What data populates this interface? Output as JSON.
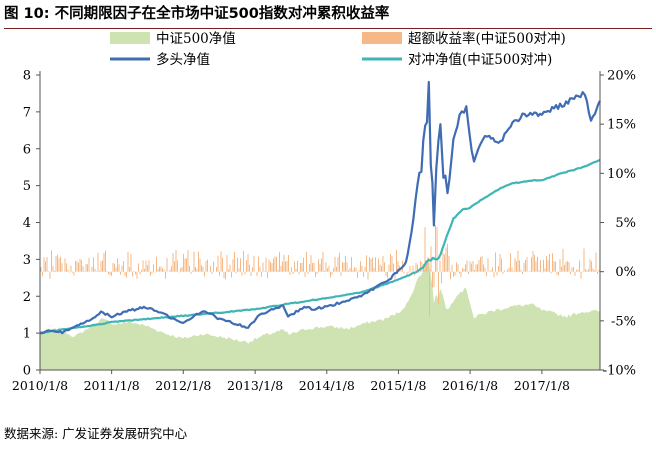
{
  "title": "图 10:  不同期限因子在全市场中证500指数对冲累积收益率",
  "source": "数据来源:  广发证券发展研究中心",
  "colors": {
    "index_area": "#cfe2b1",
    "excess_bar": "#f5b887",
    "long_line": "#3f6cb3",
    "hedge_line": "#3fb5b7",
    "title_rule": "#7a1e1e"
  },
  "chart_data": {
    "type": "line",
    "legend_placement": "top",
    "grid": false,
    "x_ticks": [
      "2010/1/8",
      "2011/1/8",
      "2012/1/8",
      "2013/1/8",
      "2014/1/8",
      "2015/1/8",
      "2016/1/8",
      "2017/1/8"
    ],
    "x_range": [
      "2010/01/08",
      "2017/10/31"
    ],
    "y_left": {
      "range": [
        0,
        8
      ],
      "ticks": [
        "0",
        "1",
        "2",
        "3",
        "4",
        "5",
        "6",
        "7",
        "8"
      ]
    },
    "y_right": {
      "range": [
        -10,
        20
      ],
      "unit": "%",
      "ticks": [
        "-10%",
        "-5%",
        "0%",
        "5%",
        "10%",
        "15%",
        "20%"
      ]
    },
    "series": [
      {
        "name": "中证500净值",
        "kind": "area",
        "axis": "left",
        "color": "#cfe2b1",
        "points": [
          [
            "2010/01/08",
            1.0
          ],
          [
            "2010/04/15",
            1.12
          ],
          [
            "2010/07/05",
            0.9
          ],
          [
            "2010/10/20",
            1.28
          ],
          [
            "2010/11/20",
            1.38
          ],
          [
            "2011/01/20",
            1.25
          ],
          [
            "2011/04/15",
            1.3
          ],
          [
            "2011/07/01",
            1.2
          ],
          [
            "2011/10/15",
            0.98
          ],
          [
            "2012/01/08",
            0.85
          ],
          [
            "2012/04/15",
            0.98
          ],
          [
            "2012/07/15",
            0.9
          ],
          [
            "2012/10/15",
            0.8
          ],
          [
            "2012/12/05",
            0.76
          ],
          [
            "2013/03/01",
            0.95
          ],
          [
            "2013/05/30",
            1.08
          ],
          [
            "2013/07/01",
            0.96
          ],
          [
            "2013/10/01",
            1.12
          ],
          [
            "2014/01/08",
            1.18
          ],
          [
            "2014/05/01",
            1.12
          ],
          [
            "2014/08/01",
            1.28
          ],
          [
            "2014/11/01",
            1.38
          ],
          [
            "2015/01/08",
            1.55
          ],
          [
            "2015/03/01",
            1.85
          ],
          [
            "2015/04/15",
            2.45
          ],
          [
            "2015/06/12",
            3.05
          ],
          [
            "2015/07/08",
            1.9
          ],
          [
            "2015/08/20",
            2.15
          ],
          [
            "2015/09/15",
            1.6
          ],
          [
            "2015/11/01",
            2.05
          ],
          [
            "2015/12/20",
            2.22
          ],
          [
            "2016/01/28",
            1.4
          ],
          [
            "2016/03/01",
            1.5
          ],
          [
            "2016/05/01",
            1.6
          ],
          [
            "2016/08/01",
            1.72
          ],
          [
            "2016/11/15",
            1.78
          ],
          [
            "2017/01/08",
            1.62
          ],
          [
            "2017/05/15",
            1.45
          ],
          [
            "2017/08/01",
            1.58
          ],
          [
            "2017/10/31",
            1.6
          ]
        ]
      },
      {
        "name": "超额收益率(中证500对冲)",
        "kind": "bar",
        "axis": "right",
        "color": "#f5b887",
        "baseline": 0,
        "range_normal": [
          -0.8,
          2.5
        ],
        "range_volatile": [
          -5,
          5
        ],
        "volatile_period": [
          "2015/05/01",
          "2015/10/01"
        ]
      },
      {
        "name": "多头净值",
        "kind": "line",
        "axis": "left",
        "color": "#3f6cb3",
        "points": [
          [
            "2010/01/08",
            1.0
          ],
          [
            "2010/03/15",
            1.08
          ],
          [
            "2010/05/01",
            1.02
          ],
          [
            "2010/07/05",
            1.15
          ],
          [
            "2010/10/15",
            1.45
          ],
          [
            "2010/11/15",
            1.58
          ],
          [
            "2011/01/08",
            1.45
          ],
          [
            "2011/04/15",
            1.62
          ],
          [
            "2011/07/01",
            1.7
          ],
          [
            "2011/09/15",
            1.55
          ],
          [
            "2011/12/20",
            1.3
          ],
          [
            "2012/01/08",
            1.28
          ],
          [
            "2012/03/15",
            1.5
          ],
          [
            "2012/05/01",
            1.6
          ],
          [
            "2012/07/01",
            1.4
          ],
          [
            "2012/09/01",
            1.3
          ],
          [
            "2012/12/03",
            1.15
          ],
          [
            "2013/02/01",
            1.5
          ],
          [
            "2013/05/30",
            1.75
          ],
          [
            "2013/06/25",
            1.45
          ],
          [
            "2013/09/15",
            1.7
          ],
          [
            "2013/11/01",
            1.65
          ],
          [
            "2014/01/08",
            1.72
          ],
          [
            "2014/04/01",
            1.85
          ],
          [
            "2014/07/01",
            2.0
          ],
          [
            "2014/10/01",
            2.3
          ],
          [
            "2014/12/01",
            2.5
          ],
          [
            "2015/01/08",
            2.7
          ],
          [
            "2015/02/15",
            2.9
          ],
          [
            "2015/03/15",
            3.7
          ],
          [
            "2015/04/15",
            5.0
          ],
          [
            "2015/05/15",
            6.0
          ],
          [
            "2015/06/12",
            7.5
          ],
          [
            "2015/06/22",
            5.6
          ],
          [
            "2015/07/08",
            4.2
          ],
          [
            "2015/07/20",
            5.5
          ],
          [
            "2015/08/10",
            6.6
          ],
          [
            "2015/08/25",
            5.2
          ],
          [
            "2015/09/15",
            4.8
          ],
          [
            "2015/10/15",
            6.2
          ],
          [
            "2015/11/15",
            6.9
          ],
          [
            "2015/12/20",
            7.1
          ],
          [
            "2016/01/05",
            6.4
          ],
          [
            "2016/01/28",
            5.6
          ],
          [
            "2016/03/01",
            6.2
          ],
          [
            "2016/04/15",
            6.4
          ],
          [
            "2016/06/01",
            6.1
          ],
          [
            "2016/08/01",
            6.6
          ],
          [
            "2016/10/01",
            6.9
          ],
          [
            "2016/12/01",
            7.0
          ],
          [
            "2017/01/08",
            6.9
          ],
          [
            "2017/03/01",
            7.1
          ],
          [
            "2017/05/01",
            7.2
          ],
          [
            "2017/07/01",
            7.4
          ],
          [
            "2017/08/15",
            7.5
          ],
          [
            "2017/09/15",
            6.7
          ],
          [
            "2017/10/15",
            7.05
          ],
          [
            "2017/10/31",
            7.3
          ]
        ]
      },
      {
        "name": "对冲净值(中证500对冲)",
        "kind": "line",
        "axis": "left",
        "color": "#3fb5b7",
        "points": [
          [
            "2010/01/08",
            1.0
          ],
          [
            "2010/06/01",
            1.12
          ],
          [
            "2010/10/15",
            1.22
          ],
          [
            "2011/01/08",
            1.3
          ],
          [
            "2011/07/01",
            1.38
          ],
          [
            "2012/01/08",
            1.47
          ],
          [
            "2012/07/01",
            1.55
          ],
          [
            "2013/01/08",
            1.65
          ],
          [
            "2013/07/01",
            1.8
          ],
          [
            "2014/01/08",
            1.95
          ],
          [
            "2014/07/01",
            2.1
          ],
          [
            "2015/01/08",
            2.45
          ],
          [
            "2015/03/15",
            2.6
          ],
          [
            "2015/05/01",
            2.72
          ],
          [
            "2015/06/12",
            3.0
          ],
          [
            "2015/08/01",
            3.0
          ],
          [
            "2015/09/01",
            3.5
          ],
          [
            "2015/10/15",
            4.1
          ],
          [
            "2015/12/01",
            4.35
          ],
          [
            "2016/01/08",
            4.4
          ],
          [
            "2016/03/01",
            4.6
          ],
          [
            "2016/06/01",
            4.9
          ],
          [
            "2016/08/01",
            5.05
          ],
          [
            "2016/12/01",
            5.15
          ],
          [
            "2017/01/08",
            5.15
          ],
          [
            "2017/04/01",
            5.3
          ],
          [
            "2017/07/01",
            5.45
          ],
          [
            "2017/09/01",
            5.55
          ],
          [
            "2017/10/31",
            5.7
          ]
        ]
      }
    ]
  }
}
